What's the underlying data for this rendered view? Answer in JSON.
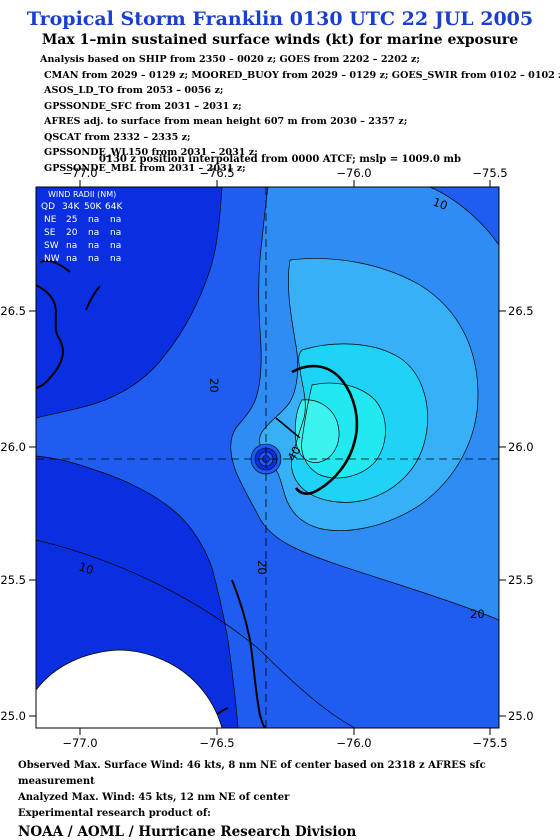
{
  "title": "Tropical Storm Franklin 0130 UTC 22 JUL 2005",
  "subtitle": "Max 1–min sustained surface winds (kt) for marine exposure",
  "analysis_lines": [
    "Analysis based on  SHIP from 2350 – 0020 z;  GOES from 2202 – 2202 z;",
    "CMAN from 2029 – 0129 z;  MOORED_BUOY from 2029 – 0129 z;  GOES_SWIR from 0102 – 0102 z;",
    "ASOS_LD_TO from 2053 – 0056 z;",
    "GPSSONDE_SFC from 2031 – 2031 z;",
    "AFRES adj. to surface from mean height 607 m from 2030 – 2357 z;",
    "QSCAT from 2332 – 2335 z;",
    "GPSSONDE_WL150 from 2031 – 2031 z;",
    "GPSSONDE_MBL from 2031 – 2031 z;"
  ],
  "position_line": "0130 z position interpolated from 0000 ATCF; mslp = 1009.0 mb",
  "wind_radii": {
    "title": "WIND RADII (NM)",
    "header": [
      "QD",
      "34K",
      "50K",
      "64K"
    ],
    "rows": [
      [
        "NE",
        "25",
        "na",
        "na"
      ],
      [
        "SE",
        "20",
        "na",
        "na"
      ],
      [
        "SW",
        "na",
        "na",
        "na"
      ],
      [
        "NW",
        "na",
        "na",
        "na"
      ]
    ]
  },
  "axes": {
    "lon_ticks": [
      "−77.0",
      "−76.5",
      "−76.0",
      "−75.5"
    ],
    "lat_ticks": [
      "26.5",
      "26.0",
      "25.5",
      "25.0"
    ]
  },
  "contour_labels": {
    "c10_a": "10",
    "c10_b": "10",
    "c20_a": "20",
    "c20_b": "20",
    "c20_c": "20",
    "c40": "40"
  },
  "colors": {
    "level_0_10": "#0a2fe0",
    "level_10_20": "#1f5cf0",
    "level_20_25": "#2f8cf5",
    "level_25_30": "#38b0f7",
    "level_30_35": "#1fd3f7",
    "level_35_40": "#22e8f0",
    "level_40_45": "#3cf2ee",
    "land": "#ffffff",
    "title": "#1a3fd0"
  },
  "footer": {
    "line1": "Observed Max. Surface Wind: 46 kts, 8 nm NE of center based on 2318 z AFRES sfc measurement",
    "line2": "Analyzed Max. Wind: 45 kts, 12 nm NE of center",
    "line3": "Experimental research product of:",
    "org": "NOAA / AOML / Hurricane Research Division"
  }
}
